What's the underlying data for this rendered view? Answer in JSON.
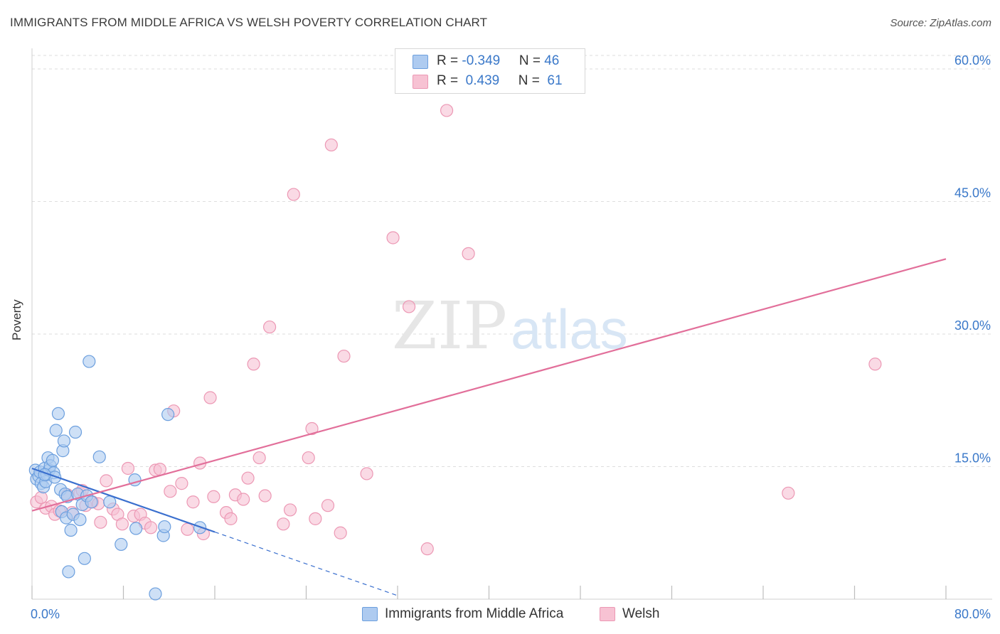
{
  "header": {
    "title": "IMMIGRANTS FROM MIDDLE AFRICA VS WELSH POVERTY CORRELATION CHART",
    "source": "Source: ZipAtlas.com"
  },
  "legend": {
    "blue": {
      "r_label": "R = ",
      "r_value": "-0.349",
      "n_label": "N = ",
      "n_value": "46"
    },
    "pink": {
      "r_label": "R = ",
      "r_value": " 0.439",
      "n_label": "N = ",
      "n_value": " 61"
    }
  },
  "bottom_legend": {
    "blue_label": "Immigrants from Middle Africa",
    "pink_label": "Welsh"
  },
  "watermark": {
    "zip": "ZIP",
    "atlas": "atlas"
  },
  "colors": {
    "blue_fill": "#aecbf0",
    "blue_stroke": "#6c9fde",
    "blue_line": "#3a6fce",
    "pink_fill": "#f7c2d3",
    "pink_stroke": "#ec98b4",
    "pink_line": "#e26f9a",
    "axis_text": "#3a78c9",
    "grid": "#dedede"
  },
  "chart_data": {
    "type": "scatter",
    "title": "IMMIGRANTS FROM MIDDLE AFRICA VS WELSH POVERTY CORRELATION CHART",
    "xlabel": "",
    "ylabel": "Poverty",
    "xlim": [
      0,
      80
    ],
    "ylim": [
      0,
      62
    ],
    "x_tick_labels": [
      "0.0%",
      "80.0%"
    ],
    "y_ticks": [
      15,
      30,
      45,
      60
    ],
    "y_tick_labels": [
      "15.0%",
      "30.0%",
      "45.0%",
      "60.0%"
    ],
    "grid": true,
    "series": [
      {
        "name": "Immigrants from Middle Africa",
        "color": "blue",
        "R": -0.349,
        "N": 46,
        "trend": {
          "x0": 0,
          "y0": 14.8,
          "x1": 16,
          "y1": 7.6,
          "dash_to_x": 32
        },
        "points": [
          [
            0.3,
            14.6
          ],
          [
            0.4,
            13.6
          ],
          [
            0.6,
            13.9
          ],
          [
            0.7,
            14.4
          ],
          [
            0.8,
            13.1
          ],
          [
            1.0,
            12.7
          ],
          [
            1.1,
            14.8
          ],
          [
            1.2,
            13.3
          ],
          [
            1.3,
            14.1
          ],
          [
            1.4,
            16.0
          ],
          [
            1.5,
            14.6
          ],
          [
            1.6,
            15.1
          ],
          [
            1.8,
            15.7
          ],
          [
            1.9,
            14.3
          ],
          [
            2.1,
            19.1
          ],
          [
            2.3,
            21.0
          ],
          [
            2.5,
            12.4
          ],
          [
            2.6,
            9.9
          ],
          [
            2.7,
            16.8
          ],
          [
            2.8,
            17.9
          ],
          [
            2.9,
            11.9
          ],
          [
            3.0,
            9.2
          ],
          [
            3.1,
            11.6
          ],
          [
            3.2,
            3.1
          ],
          [
            3.4,
            7.8
          ],
          [
            3.6,
            9.6
          ],
          [
            3.8,
            18.9
          ],
          [
            4.0,
            11.9
          ],
          [
            4.2,
            9.0
          ],
          [
            4.4,
            10.7
          ],
          [
            4.6,
            4.6
          ],
          [
            4.8,
            11.7
          ],
          [
            5.0,
            26.9
          ],
          [
            5.2,
            11.0
          ],
          [
            5.9,
            16.1
          ],
          [
            6.8,
            11.0
          ],
          [
            7.8,
            6.2
          ],
          [
            9.0,
            13.5
          ],
          [
            9.1,
            8.0
          ],
          [
            10.8,
            0.6
          ],
          [
            11.5,
            7.2
          ],
          [
            11.6,
            8.2
          ],
          [
            11.9,
            20.9
          ],
          [
            14.7,
            8.1
          ],
          [
            2.0,
            13.8
          ],
          [
            1.1,
            14.1
          ]
        ]
      },
      {
        "name": "Welsh",
        "color": "pink",
        "R": 0.439,
        "N": 61,
        "trend": {
          "x0": 0,
          "y0": 10.0,
          "x1": 80,
          "y1": 38.5
        },
        "points": [
          [
            0.4,
            11.0
          ],
          [
            1.2,
            10.3
          ],
          [
            1.7,
            10.5
          ],
          [
            2.0,
            9.6
          ],
          [
            2.4,
            10.0
          ],
          [
            3.1,
            11.8
          ],
          [
            3.5,
            9.8
          ],
          [
            4.2,
            12.0
          ],
          [
            4.4,
            12.3
          ],
          [
            4.7,
            10.6
          ],
          [
            5.3,
            11.0
          ],
          [
            5.8,
            10.8
          ],
          [
            6.0,
            8.7
          ],
          [
            6.5,
            13.4
          ],
          [
            7.1,
            10.2
          ],
          [
            7.5,
            9.6
          ],
          [
            7.9,
            8.5
          ],
          [
            8.4,
            14.8
          ],
          [
            8.9,
            9.4
          ],
          [
            9.5,
            9.6
          ],
          [
            9.9,
            8.6
          ],
          [
            10.4,
            8.1
          ],
          [
            10.8,
            14.6
          ],
          [
            11.2,
            14.7
          ],
          [
            12.1,
            12.2
          ],
          [
            12.4,
            21.3
          ],
          [
            13.1,
            13.1
          ],
          [
            13.6,
            7.9
          ],
          [
            14.1,
            11.0
          ],
          [
            14.7,
            15.4
          ],
          [
            15.0,
            7.4
          ],
          [
            15.6,
            22.8
          ],
          [
            15.9,
            11.6
          ],
          [
            17.0,
            9.8
          ],
          [
            17.4,
            9.1
          ],
          [
            17.8,
            11.8
          ],
          [
            18.5,
            11.3
          ],
          [
            18.9,
            13.7
          ],
          [
            19.4,
            26.6
          ],
          [
            19.9,
            16.0
          ],
          [
            20.4,
            11.7
          ],
          [
            20.8,
            30.8
          ],
          [
            22.0,
            8.5
          ],
          [
            22.6,
            10.1
          ],
          [
            22.9,
            45.8
          ],
          [
            24.2,
            16.0
          ],
          [
            24.5,
            19.3
          ],
          [
            24.8,
            9.1
          ],
          [
            25.9,
            10.6
          ],
          [
            26.2,
            51.4
          ],
          [
            27.0,
            7.5
          ],
          [
            27.3,
            27.5
          ],
          [
            29.3,
            14.2
          ],
          [
            31.6,
            40.9
          ],
          [
            33.0,
            33.1
          ],
          [
            34.6,
            5.7
          ],
          [
            36.3,
            55.3
          ],
          [
            38.2,
            39.1
          ],
          [
            66.2,
            12.0
          ],
          [
            73.8,
            26.6
          ],
          [
            0.8,
            11.5
          ]
        ]
      }
    ]
  }
}
